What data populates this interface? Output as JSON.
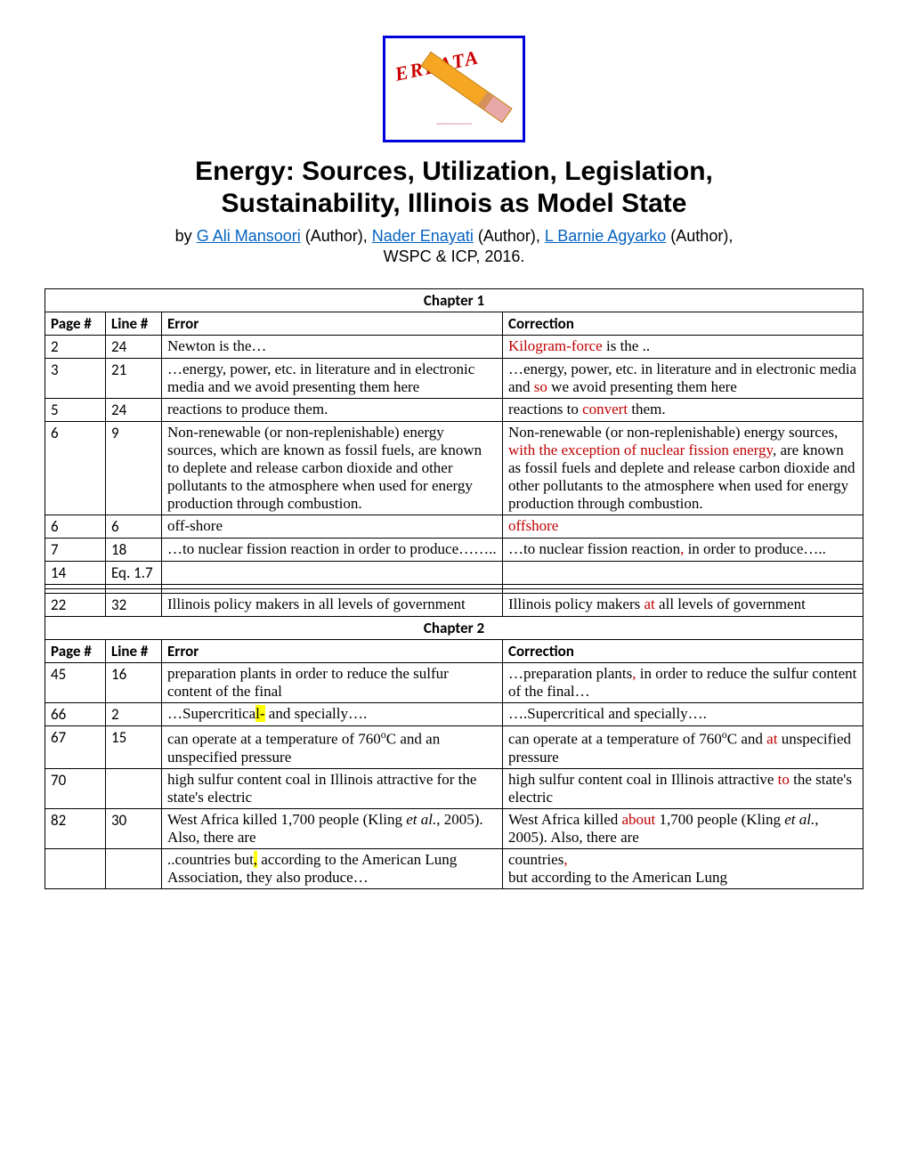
{
  "errata_label": "ERRATA",
  "title_line1": "Energy: Sources, Utilization, Legislation,",
  "title_line2": "Sustainability, Illinois as Model State",
  "by_prefix": "by ",
  "author1": "G Ali Mansoori",
  "role": " (Author), ",
  "author2": "Nader Enayati",
  "author3": "L Barnie Agyarko",
  "role_end": " (Author),",
  "publisher": "WSPC & ICP, 2016.",
  "headers": {
    "page": "Page #",
    "line": "Line #",
    "error": "Error",
    "correction": "Correction"
  },
  "chapter1": {
    "title": "Chapter 1",
    "rows": [
      {
        "page": "2",
        "line": "24",
        "error_html": "Newton is the…",
        "correction_html": "<span class='red'>Kilogram-force</span> is the .."
      },
      {
        "page": "3",
        "line": "21",
        "error_html": "…energy, power, etc. in literature and in electronic media and we avoid presenting them here",
        "correction_html": "…energy, power, etc. in literature and in electronic media and <span class='red'>so</span> we avoid presenting them here"
      },
      {
        "page": "5",
        "line": "24",
        "error_html": "reactions to produce them.",
        "correction_html": "reactions to <span class='red'>convert</span> them."
      },
      {
        "page": "6",
        "line": "9",
        "error_html": "Non-renewable (or non-replenishable) energy sources, which are known as fossil fuels, are known to deplete and release carbon dioxide and other pollutants to the atmosphere when used for energy production through combustion.",
        "correction_html": "Non-renewable (or non-replenishable) energy sources, <span class='red'>with the exception of nuclear fission energy</span>, are known as fossil fuels and deplete and release carbon dioxide and other pollutants to the atmosphere when used for energy production through combustion."
      },
      {
        "page": "6",
        "line": "6",
        "error_html": "off-shore",
        "correction_html": "<span class='red'>offshore</span>"
      },
      {
        "page": "7",
        "line": "18",
        "error_html": "…to nuclear fission reaction in order to produce……..",
        "correction_html": "…to nuclear fission reaction<span class='red'>,</span> in order to produce….."
      },
      {
        "page": "14",
        "line": "Eq. 1.7",
        "error_html": "",
        "correction_html": ""
      },
      {
        "page": "",
        "line": "",
        "error_html": "",
        "correction_html": ""
      },
      {
        "page": "",
        "line": "",
        "error_html": "",
        "correction_html": ""
      },
      {
        "page": "22",
        "line": "32",
        "error_html": "Illinois policy makers in all levels of government",
        "correction_html": "Illinois policy makers <span class='red'>at</span> all levels of government"
      }
    ]
  },
  "chapter2": {
    "title": "Chapter 2",
    "rows": [
      {
        "page": "45",
        "line": "16",
        "error_html": "preparation plants in order to reduce the sulfur content of the final",
        "correction_html": "…preparation plants<span class='red'>,</span> in order to reduce the sulfur content of the final…"
      },
      {
        "page": "66",
        "line": "2",
        "error_html": "…Supercritica<span class='hi-yellow'>l-</span> and specially….",
        "correction_html": "….Supercritical and specially…."
      },
      {
        "page": "67",
        "line": "15",
        "error_html": "can operate at a temperature of 760<span style='font-size:12px;vertical-align:super'>o</span>C and an unspecified pressure",
        "correction_html": "can operate at a temperature of 760<span style='font-size:12px;vertical-align:super'>o</span>C and <span class='red'>at</span> unspecified pressure"
      },
      {
        "page": "70",
        "line": "",
        "error_html": "high sulfur content coal in Illinois attractive for the state's electric",
        "correction_html": "high sulfur content coal in Illinois attractive <span class='red'>to</span> the state's electric"
      },
      {
        "page": "82",
        "line": "30",
        "error_html": "West Africa killed 1,700 people (Kling <i>et al.</i>, 2005). Also, there are",
        "correction_html": "West Africa killed <span class='red'>about</span> 1,700 people (Kling <i>et al.</i>, 2005). Also, there are"
      },
      {
        "page": "",
        "line": "",
        "error_html": "..countries but<span class='hi-yellow'>,</span> according to the American Lung Association, they also produce…",
        "correction_html": "countries<span class='red'>,</span><br>but  according to the American Lung"
      }
    ]
  }
}
